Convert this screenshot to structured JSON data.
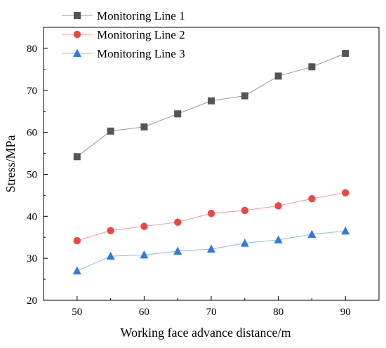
{
  "chart_data": {
    "type": "line",
    "xlabel": "Working face advance distance/m",
    "ylabel": "Stress/MPa",
    "x": [
      50,
      55,
      60,
      65,
      70,
      75,
      80,
      85,
      90
    ],
    "xlim": [
      45,
      95
    ],
    "ylim": [
      20,
      85
    ],
    "xticks": [
      50,
      60,
      70,
      80,
      90
    ],
    "yticks": [
      20,
      30,
      40,
      50,
      60,
      70,
      80
    ],
    "grid": false,
    "legend_position": "top-left",
    "series": [
      {
        "name": "Monitoring Line 1",
        "marker": "square",
        "color": "#555555",
        "line_color": "#9a9a9a",
        "values": [
          54.2,
          60.3,
          61.3,
          64.4,
          67.5,
          68.7,
          73.4,
          75.6,
          78.8
        ]
      },
      {
        "name": "Monitoring Line 2",
        "marker": "circle",
        "color": "#f04545",
        "line_color": "#f49a9a",
        "values": [
          34.2,
          36.6,
          37.6,
          38.6,
          40.7,
          41.4,
          42.5,
          44.2,
          45.6
        ]
      },
      {
        "name": "Monitoring Line 3",
        "marker": "triangle",
        "color": "#2f7be0",
        "line_color": "#8fbaf0",
        "values": [
          27.0,
          30.5,
          30.8,
          31.7,
          32.2,
          33.6,
          34.4,
          35.7,
          36.5
        ]
      }
    ]
  }
}
